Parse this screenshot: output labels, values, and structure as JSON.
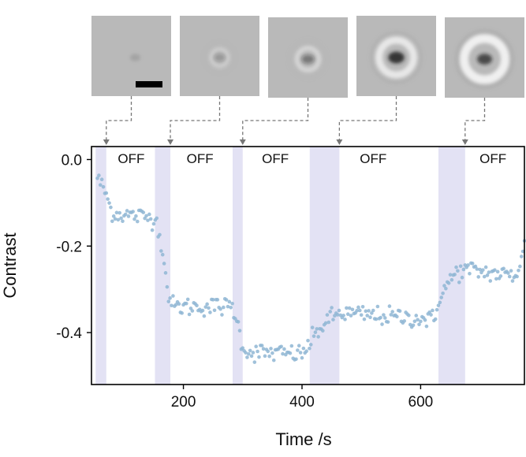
{
  "colors": {
    "points": "#8fb6d3",
    "on_shading": "#e3e2f4",
    "connector": "#777777",
    "axis": "#000000"
  },
  "micrographs": {
    "count": 5,
    "has_scale_bar": true
  },
  "chart_data": {
    "type": "scatter",
    "title": "",
    "xlabel": "Time /s",
    "ylabel": "Contrast",
    "xlim": [
      45,
      775
    ],
    "ylim": [
      -0.52,
      0.03
    ],
    "x_ticks": [
      200,
      400,
      600
    ],
    "y_ticks": [
      0.0,
      -0.2,
      -0.4
    ],
    "x_tick_labels": [
      "200",
      "400",
      "600"
    ],
    "y_tick_labels": [
      "0.0",
      "-0.2",
      "-0.4"
    ],
    "grid": false,
    "on_intervals": [
      [
        52,
        70
      ],
      [
        152,
        178
      ],
      [
        283,
        300
      ],
      [
        413,
        463
      ],
      [
        630,
        675
      ]
    ],
    "off_labels": [
      {
        "text": "OFF",
        "x": 112
      },
      {
        "text": "OFF",
        "x": 228
      },
      {
        "text": "OFF",
        "x": 355
      },
      {
        "text": "OFF",
        "x": 520
      },
      {
        "text": "OFF",
        "x": 722
      }
    ],
    "trend": [
      [
        55,
        -0.04
      ],
      [
        62,
        -0.06
      ],
      [
        70,
        -0.08
      ],
      [
        76,
        -0.11
      ],
      [
        82,
        -0.125
      ],
      [
        152,
        -0.135
      ],
      [
        160,
        -0.17
      ],
      [
        166,
        -0.22
      ],
      [
        172,
        -0.29
      ],
      [
        178,
        -0.33
      ],
      [
        184,
        -0.34
      ],
      [
        283,
        -0.34
      ],
      [
        290,
        -0.37
      ],
      [
        296,
        -0.41
      ],
      [
        302,
        -0.435
      ],
      [
        308,
        -0.445
      ],
      [
        400,
        -0.45
      ],
      [
        413,
        -0.425
      ],
      [
        430,
        -0.39
      ],
      [
        445,
        -0.37
      ],
      [
        463,
        -0.355
      ],
      [
        625,
        -0.37
      ],
      [
        630,
        -0.32
      ],
      [
        645,
        -0.29
      ],
      [
        660,
        -0.26
      ],
      [
        680,
        -0.255
      ],
      [
        760,
        -0.27
      ],
      [
        775,
        -0.2
      ]
    ],
    "noise_sd": 0.011,
    "sample_spacing_s": 2.5
  }
}
